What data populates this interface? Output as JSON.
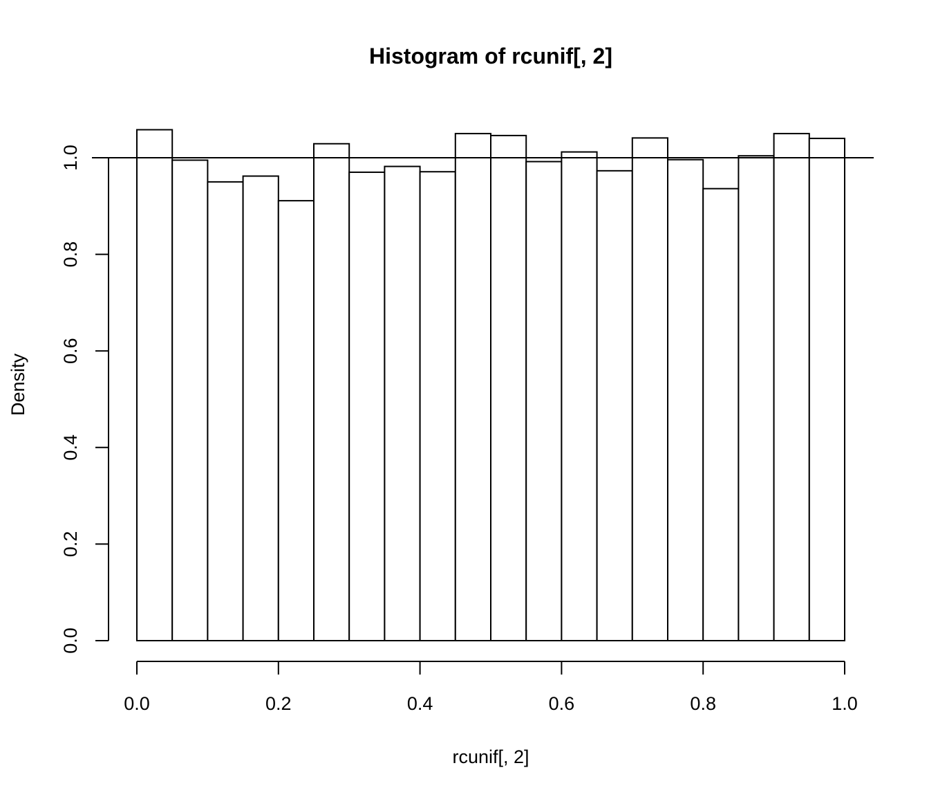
{
  "chart_data": {
    "type": "bar",
    "title": "Histogram of rcunif[, 2]",
    "xlabel": "rcunif[, 2]",
    "ylabel": "Density",
    "bin_edges": [
      0.0,
      0.05,
      0.1,
      0.15,
      0.2,
      0.25,
      0.3,
      0.35,
      0.4,
      0.45,
      0.5,
      0.55,
      0.6,
      0.65,
      0.7,
      0.75,
      0.8,
      0.85,
      0.9,
      0.95,
      1.0
    ],
    "values": [
      1.058,
      0.995,
      0.95,
      0.962,
      0.911,
      1.029,
      0.97,
      0.982,
      0.971,
      1.05,
      1.046,
      0.992,
      1.012,
      0.973,
      1.041,
      0.996,
      0.936,
      1.004,
      1.05,
      1.04
    ],
    "xlim": [
      0,
      1
    ],
    "ylim": [
      0,
      1.06
    ],
    "x_ticks": [
      "0.0",
      "0.2",
      "0.4",
      "0.6",
      "0.8",
      "1.0"
    ],
    "y_ticks": [
      "0.0",
      "0.2",
      "0.4",
      "0.6",
      "0.8",
      "1.0"
    ],
    "reference_line_y": 1.0,
    "grid": false,
    "bar_fill": "#ffffff",
    "bar_stroke": "#000000"
  }
}
